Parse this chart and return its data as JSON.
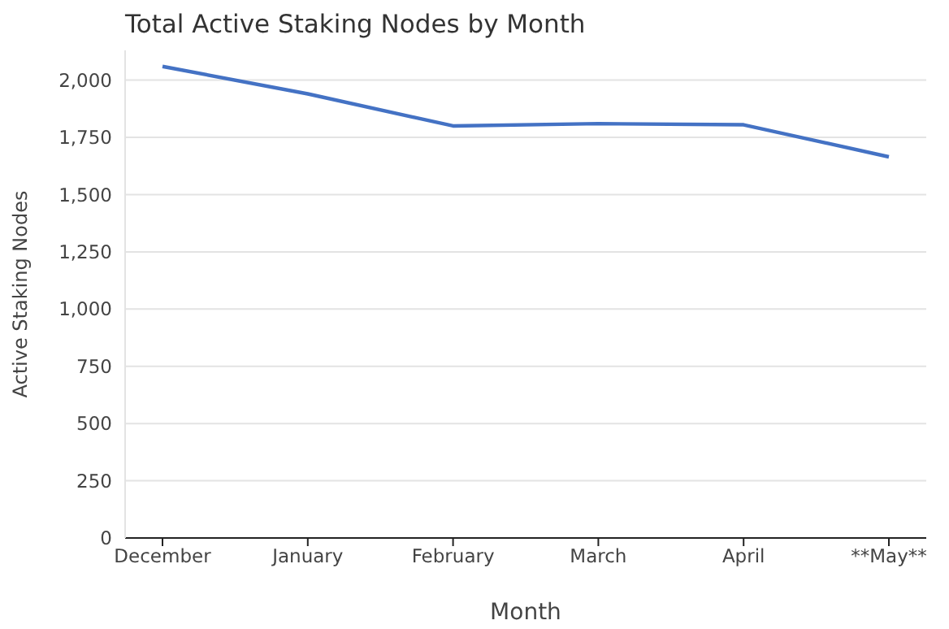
{
  "chart_data": {
    "type": "line",
    "title": "Total Active Staking Nodes by Month",
    "xlabel": "Month",
    "ylabel": "Active Staking Nodes",
    "categories": [
      "December",
      "January",
      "February",
      "March",
      "April",
      "**May**"
    ],
    "series": [
      {
        "color": "#4472c4",
        "values": [
          2060,
          1940,
          1800,
          1810,
          1805,
          1665
        ]
      }
    ],
    "yticks": [
      0,
      250,
      500,
      750,
      {
        "value": 1000,
        "label": "1,000"
      },
      {
        "value": 1250,
        "label": "1,250"
      },
      {
        "value": 1500,
        "label": "1,500"
      },
      {
        "value": 1750,
        "label": "1,750"
      },
      {
        "value": 2000,
        "label": "2,000"
      }
    ],
    "ylim": [
      0,
      2130
    ],
    "grid": "y",
    "legend": false,
    "marker": "none",
    "line_style": "solid"
  }
}
